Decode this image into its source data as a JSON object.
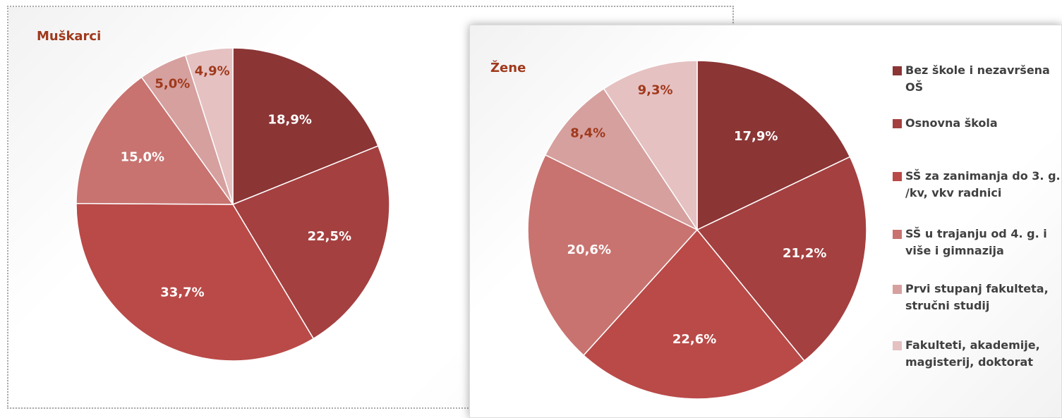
{
  "chart_data": [
    {
      "type": "pie",
      "title": "Muškarci",
      "values": [
        18.9,
        22.5,
        33.7,
        15.0,
        5.0,
        4.9
      ],
      "value_labels": [
        "18,9%",
        "22,5%",
        "33,7%",
        "15,0%",
        "5,0%",
        "4,9%"
      ]
    },
    {
      "type": "pie",
      "title": "Žene",
      "values": [
        17.9,
        21.2,
        22.6,
        20.6,
        8.4,
        9.3
      ],
      "value_labels": [
        "17,9%",
        "21,2%",
        "22,6%",
        "20,6%",
        "8,4%",
        "9,3%"
      ]
    }
  ],
  "legend": {
    "categories": [
      "Bez škole i nezavršena OŠ",
      "Osnovna škola",
      "SŠ za zanimanja do 3. g. /kv, vkv radnici",
      "SŠ u trajanju od 4. g. i više i gimnazija",
      "Prvi stupanj fakulteta, stručni studij",
      "Fakulteti, akademije, magisterij, doktorat"
    ],
    "colors": [
      "#8b3535",
      "#a54040",
      "#b94a48",
      "#c87370",
      "#d6a09f",
      "#e5c1c2"
    ]
  }
}
